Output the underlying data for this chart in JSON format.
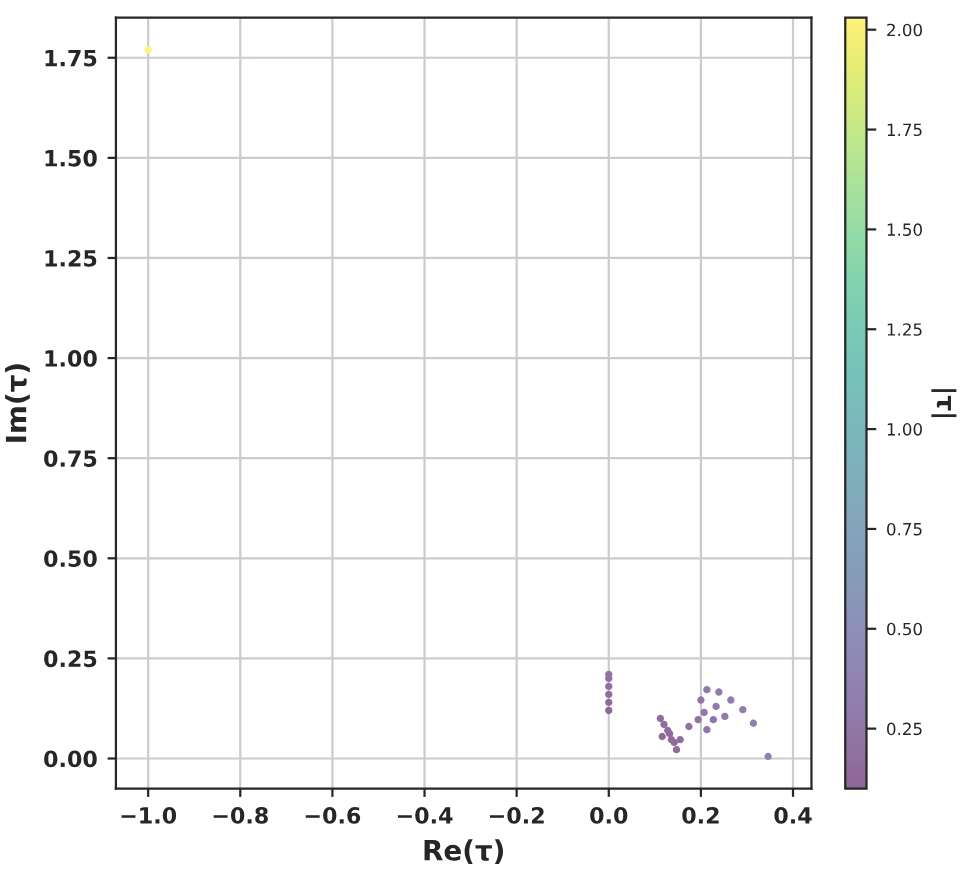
{
  "chart_data": {
    "type": "scatter",
    "xlabel": "Re(τ)",
    "ylabel": "Im(τ)",
    "clabel": "|τ|",
    "x": [
      0,
      0,
      0,
      0,
      0,
      0,
      0.112,
      0.12,
      0.128,
      0.116,
      0.136,
      0.147,
      0.142,
      0.132,
      0.155,
      0.174,
      0.194,
      0.2,
      0.213,
      0.239,
      0.265,
      0.291,
      0.314,
      0.227,
      0.213,
      0.252,
      0.233,
      0.207,
      0.346,
      -1.0
    ],
    "values": [
      0.12,
      0.14,
      0.16,
      0.18,
      0.2,
      0.21,
      0.1,
      0.085,
      0.07,
      0.055,
      0.047,
      0.022,
      0.04,
      0.062,
      0.047,
      0.08,
      0.097,
      0.146,
      0.172,
      0.166,
      0.146,
      0.122,
      0.088,
      0.097,
      0.072,
      0.105,
      0.13,
      0.115,
      0.005,
      1.77
    ],
    "cvalues": [
      0.12,
      0.14,
      0.16,
      0.18,
      0.2,
      0.21,
      0.15,
      0.147,
      0.146,
      0.128,
      0.144,
      0.149,
      0.148,
      0.146,
      0.162,
      0.192,
      0.217,
      0.248,
      0.274,
      0.291,
      0.303,
      0.316,
      0.326,
      0.247,
      0.225,
      0.273,
      0.267,
      0.237,
      0.346,
      2.03
    ],
    "clim": [
      0.1,
      2.03
    ],
    "cticks": [
      {
        "value": 0.25,
        "label": "0.25"
      },
      {
        "value": 0.5,
        "label": "0.50"
      },
      {
        "value": 0.75,
        "label": "0.75"
      },
      {
        "value": 1.0,
        "label": "1.00"
      },
      {
        "value": 1.25,
        "label": "1.25"
      },
      {
        "value": 1.5,
        "label": "1.50"
      },
      {
        "value": 1.75,
        "label": "1.75"
      },
      {
        "value": 2.0,
        "label": "2.00"
      }
    ],
    "xlim": [
      -1.07,
      0.44
    ],
    "ylim": [
      -0.075,
      1.85
    ],
    "xticks": [
      {
        "value": -1.0,
        "label": "−1.0"
      },
      {
        "value": -0.8,
        "label": "−0.8"
      },
      {
        "value": -0.6,
        "label": "−0.6"
      },
      {
        "value": -0.4,
        "label": "−0.4"
      },
      {
        "value": -0.2,
        "label": "−0.2"
      },
      {
        "value": 0.0,
        "label": "0.0"
      },
      {
        "value": 0.2,
        "label": "0.2"
      },
      {
        "value": 0.4,
        "label": "0.4"
      }
    ],
    "yticks": [
      {
        "value": 0.0,
        "label": "0.00"
      },
      {
        "value": 0.25,
        "label": "0.25"
      },
      {
        "value": 0.5,
        "label": "0.50"
      },
      {
        "value": 0.75,
        "label": "0.75"
      },
      {
        "value": 1.0,
        "label": "1.00"
      },
      {
        "value": 1.25,
        "label": "1.25"
      },
      {
        "value": 1.5,
        "label": "1.50"
      },
      {
        "value": 1.75,
        "label": "1.75"
      }
    ],
    "grid": true,
    "marker": "circle"
  }
}
